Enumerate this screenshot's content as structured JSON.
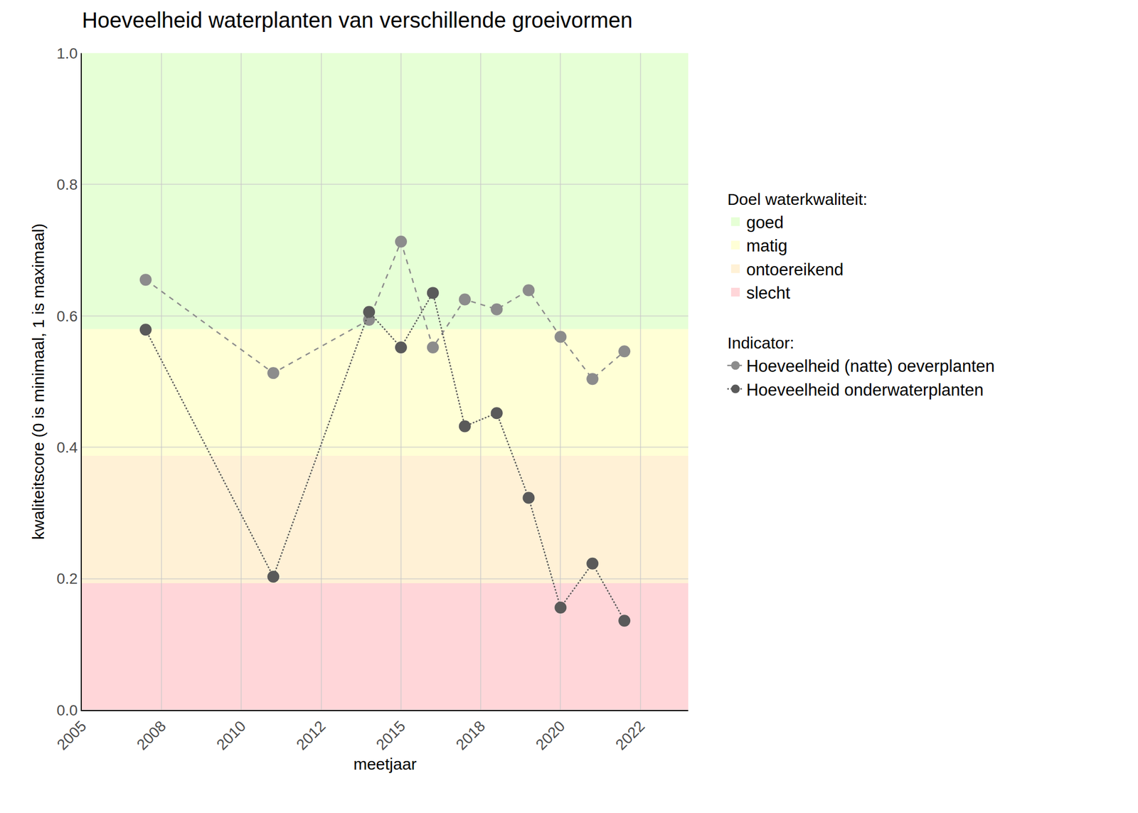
{
  "chart_data": {
    "type": "line",
    "title": "Hoeveelheid waterplanten van verschillende groeivormen",
    "x_label": "meetjaar",
    "y_label": "kwaliteitscore (0 is minimaal, 1 is maximaal)",
    "x": [
      2007,
      2011,
      2014,
      2015,
      2016,
      2017,
      2018,
      2019,
      2020,
      2021,
      2022
    ],
    "series": [
      {
        "name": "Hoeveelheid (natte) oeverplanten",
        "color": "#8c8c8c",
        "line_style": "dash",
        "marker": "circle",
        "values": [
          0.655,
          0.513,
          0.594,
          0.713,
          0.552,
          0.625,
          0.61,
          0.639,
          0.568,
          0.504,
          0.546
        ]
      },
      {
        "name": "Hoeveelheid onderwaterplanten",
        "color": "#5a5a5a",
        "line_style": "dot",
        "marker": "circle",
        "values": [
          0.579,
          0.203,
          0.606,
          0.552,
          0.635,
          0.432,
          0.452,
          0.323,
          0.156,
          0.223,
          0.136
        ]
      }
    ],
    "series_legend_title": "Indicator:",
    "band_legend_title": "Doel waterkwaliteit:",
    "bands": [
      {
        "name": "goed",
        "color": "#e6ffd6",
        "range": [
          0.58,
          1.0
        ]
      },
      {
        "name": "matig",
        "color": "#ffffd6",
        "range": [
          0.387,
          0.58
        ]
      },
      {
        "name": "ontoereikend",
        "color": "#fff1d6",
        "range": [
          0.193,
          0.387
        ]
      },
      {
        "name": "slecht",
        "color": "#ffd6d9",
        "range": [
          0.0,
          0.193
        ]
      }
    ],
    "xlim": [
      2005,
      2024
    ],
    "xticks": [
      {
        "value": 2005,
        "label": "2005"
      },
      {
        "value": 2007.5,
        "label": "2008"
      },
      {
        "value": 2010,
        "label": "2010"
      },
      {
        "value": 2012.5,
        "label": "2012"
      },
      {
        "value": 2015,
        "label": "2015"
      },
      {
        "value": 2017.5,
        "label": "2018"
      },
      {
        "value": 2020,
        "label": "2020"
      },
      {
        "value": 2022.5,
        "label": "2022"
      }
    ],
    "ylim": [
      0,
      1
    ],
    "yticks": [
      {
        "value": 0,
        "label": "0.0"
      },
      0.2,
      0.4,
      0.6,
      0.8,
      {
        "value": 1,
        "label": "1.0"
      }
    ],
    "grid": true,
    "legend": "right"
  }
}
